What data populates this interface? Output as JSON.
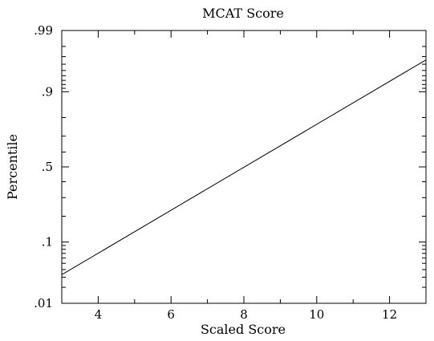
{
  "chart_data": {
    "type": "line",
    "title": "MCAT Score",
    "xlabel": "Scaled Score",
    "ylabel": "Percentile",
    "y_scale": "probability",
    "xlim": [
      3,
      13
    ],
    "ylim": [
      0.01,
      0.99
    ],
    "x_ticks": [
      4,
      6,
      8,
      10,
      12
    ],
    "x_tick_labels": [
      "4",
      "6",
      "8",
      "10",
      "12"
    ],
    "y_ticks": [
      0.01,
      0.1,
      0.5,
      0.9,
      0.99
    ],
    "y_tick_labels": [
      ".01",
      ".1",
      ".5",
      ".9",
      ".99"
    ],
    "grid": false,
    "series": [
      {
        "x": [
          3,
          13
        ],
        "y": [
          0.033,
          0.966
        ],
        "color": "#000000"
      }
    ]
  }
}
